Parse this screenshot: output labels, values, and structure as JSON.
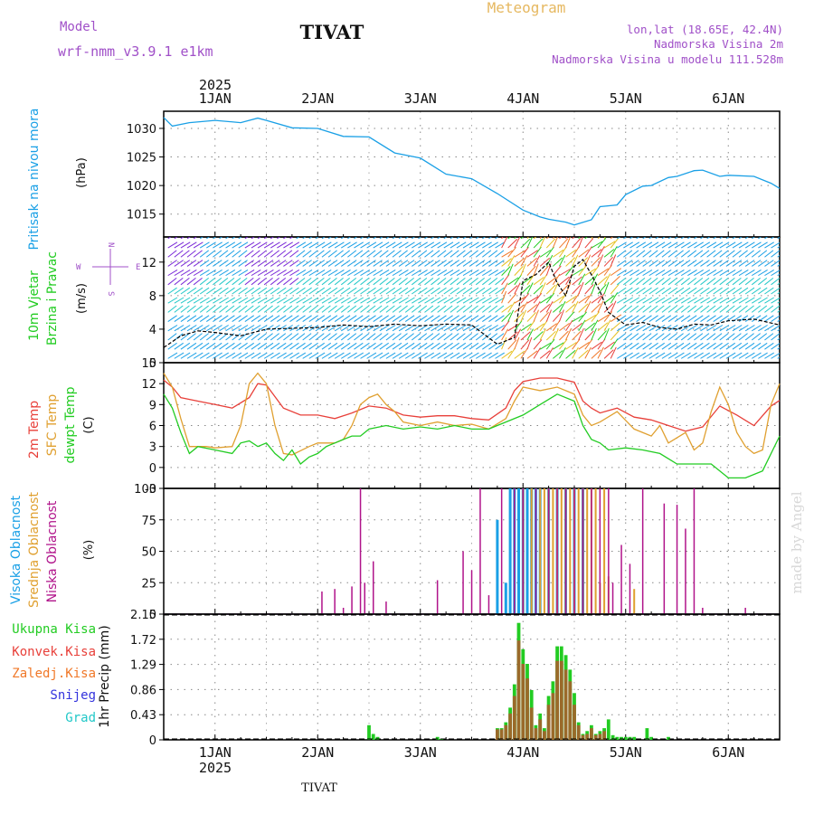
{
  "header": {
    "model_label": "Model",
    "model_name": "wrf-nmm_v3.9.1 e1km",
    "title": "TIVAT",
    "subtitle": "Meteogram",
    "location": "lon,lat (18.65E, 42.4N)",
    "elevation": "Nadmorska Visina 2m",
    "model_elevation": "Nadmorska Visina u modelu 111.528m",
    "footer": "TIVAT",
    "credit": "made by Angel"
  },
  "colors": {
    "pressure": "#1aa0e6",
    "temp_2m": "#e8403a",
    "temp_sfc": "#e0a030",
    "dewpoint": "#22cc22",
    "cloud_high": "#1aa0e6",
    "cloud_mid": "#e0a030",
    "cloud_low": "#b0138a",
    "precip_total": "#22cc22",
    "precip_conv": "#e8403a",
    "precip_frozen": "#f07828",
    "snow": "#3333dd",
    "graupel": "#22c8c8",
    "header_text": "#a050c8",
    "wind_speed": "#000000"
  },
  "time_axis": {
    "year": "2025",
    "day_labels": [
      "1JAN",
      "2JAN",
      "3JAN",
      "4JAN",
      "5JAN",
      "6JAN"
    ],
    "start_hour": -12,
    "end_hour": 132
  },
  "chart_data": [
    {
      "type": "line",
      "panel": "pressure",
      "ylabel_1": "Pritisak na nivou mora",
      "ylabel_2": "(hPa)",
      "ylim": [
        1011,
        1033
      ],
      "yticks": [
        1015,
        1020,
        1025,
        1030
      ],
      "series": [
        {
          "x": [
            -12,
            -10,
            -6,
            0,
            6,
            10,
            12,
            18,
            24,
            30,
            36,
            42,
            48,
            54,
            60,
            66,
            72,
            76,
            78,
            82,
            84,
            88,
            90,
            94,
            96,
            100,
            102,
            106,
            108,
            112,
            114,
            118,
            120,
            126,
            130,
            132
          ],
          "y": [
            1031.9,
            1030.4,
            1031.0,
            1031.4,
            1031.0,
            1031.8,
            1031.4,
            1030.1,
            1030.0,
            1028.6,
            1028.5,
            1025.7,
            1024.8,
            1022.0,
            1021.2,
            1018.6,
            1015.7,
            1014.5,
            1014.1,
            1013.6,
            1013.1,
            1014.0,
            1016.3,
            1016.6,
            1018.4,
            1019.9,
            1020.0,
            1021.4,
            1021.6,
            1022.6,
            1022.7,
            1021.6,
            1021.8,
            1021.6,
            1020.4,
            1019.5
          ]
        }
      ]
    },
    {
      "type": "line",
      "panel": "wind",
      "ylabel_1": "10m Vjetar",
      "ylabel_2": "Brzina i Pravac",
      "ylabel_3": "(m/s)",
      "compass_left": "W",
      "compass_right": "E",
      "compass_top": "N",
      "compass_bottom": "S",
      "ylim": [
        0,
        15
      ],
      "yticks": [
        0,
        4,
        8,
        12
      ],
      "series": [
        {
          "x": [
            -12,
            -8,
            -4,
            0,
            6,
            12,
            18,
            24,
            30,
            36,
            42,
            48,
            54,
            60,
            66,
            70,
            72,
            75,
            78,
            80,
            82,
            84,
            86,
            88,
            90,
            92,
            96,
            100,
            104,
            108,
            112,
            116,
            120,
            126,
            132
          ],
          "y": [
            1.8,
            3.2,
            3.8,
            3.6,
            3.2,
            4.0,
            4.1,
            4.2,
            4.5,
            4.3,
            4.6,
            4.4,
            4.6,
            4.5,
            2.2,
            3.0,
            9.8,
            10.5,
            12.0,
            9.5,
            8.0,
            11.5,
            12.3,
            10.5,
            8.5,
            6.0,
            4.5,
            4.8,
            4.2,
            4.0,
            4.6,
            4.5,
            5.0,
            5.2,
            4.5
          ]
        }
      ]
    },
    {
      "type": "line",
      "panel": "temperature",
      "ylabel_1": "2m Temp",
      "ylabel_2": "SFC Temp",
      "ylabel_3": "dewpt Temp",
      "ylabel_4": "(C)",
      "ylim": [
        -3,
        15
      ],
      "yticks": [
        -3,
        0,
        3,
        6,
        9,
        12,
        15
      ],
      "series": [
        {
          "name": "2m Temp",
          "x": [
            -12,
            -10,
            -8,
            -4,
            0,
            4,
            8,
            10,
            12,
            16,
            20,
            24,
            28,
            32,
            36,
            40,
            44,
            48,
            52,
            56,
            60,
            64,
            68,
            70,
            72,
            76,
            80,
            84,
            86,
            88,
            90,
            94,
            98,
            102,
            106,
            110,
            114,
            118,
            122,
            126,
            130,
            132
          ],
          "y": [
            12.5,
            11.5,
            10.0,
            9.5,
            9.0,
            8.5,
            10.0,
            12.0,
            11.8,
            8.5,
            7.5,
            7.5,
            7.0,
            7.8,
            8.8,
            8.5,
            7.5,
            7.2,
            7.4,
            7.4,
            7.0,
            6.8,
            8.5,
            11.0,
            12.3,
            12.8,
            12.8,
            12.2,
            9.5,
            8.5,
            7.8,
            8.5,
            7.2,
            6.8,
            6.0,
            5.2,
            5.8,
            8.8,
            7.5,
            6.0,
            8.8,
            9.6
          ]
        },
        {
          "name": "SFC Temp",
          "x": [
            -12,
            -10,
            -8,
            -6,
            -4,
            -2,
            0,
            4,
            6,
            8,
            10,
            12,
            14,
            16,
            18,
            22,
            24,
            28,
            30,
            32,
            34,
            36,
            38,
            40,
            42,
            44,
            48,
            52,
            56,
            60,
            64,
            68,
            70,
            72,
            76,
            80,
            84,
            86,
            88,
            90,
            94,
            98,
            102,
            104,
            106,
            110,
            112,
            114,
            116,
            118,
            120,
            122,
            124,
            126,
            128,
            130,
            132
          ],
          "y": [
            13.5,
            11.5,
            7.0,
            3.0,
            3.0,
            3.0,
            2.8,
            3.0,
            6.0,
            12.0,
            13.5,
            12.0,
            6.0,
            2.0,
            1.8,
            3.0,
            3.5,
            3.5,
            4.0,
            6.0,
            9.0,
            10.0,
            10.5,
            9.0,
            8.0,
            6.5,
            6.0,
            6.5,
            6.0,
            6.2,
            5.5,
            7.0,
            9.5,
            11.5,
            11.0,
            11.5,
            10.5,
            7.5,
            6.0,
            6.5,
            8.0,
            5.5,
            4.5,
            6.0,
            3.5,
            5.0,
            2.5,
            3.5,
            8.0,
            11.5,
            9.0,
            5.0,
            3.0,
            2.0,
            2.5,
            9.0,
            12.0
          ]
        },
        {
          "name": "dewpt Temp",
          "x": [
            -12,
            -10,
            -8,
            -6,
            -4,
            0,
            4,
            6,
            8,
            10,
            12,
            14,
            16,
            18,
            20,
            22,
            24,
            26,
            28,
            30,
            32,
            34,
            36,
            40,
            44,
            48,
            52,
            56,
            60,
            64,
            68,
            72,
            76,
            80,
            84,
            86,
            88,
            90,
            92,
            96,
            100,
            104,
            108,
            112,
            116,
            120,
            124,
            128,
            132
          ],
          "y": [
            10.5,
            8.5,
            5.0,
            2.0,
            3.0,
            2.5,
            2.0,
            3.5,
            3.8,
            3.0,
            3.5,
            2.0,
            1.0,
            2.5,
            0.5,
            1.5,
            2.0,
            3.0,
            3.5,
            4.0,
            4.5,
            4.5,
            5.5,
            6.0,
            5.5,
            5.8,
            5.5,
            6.0,
            5.5,
            5.5,
            6.5,
            7.5,
            9.0,
            10.5,
            9.5,
            6.0,
            4.0,
            3.5,
            2.5,
            2.8,
            2.5,
            2.0,
            0.5,
            0.5,
            0.5,
            -1.5,
            -1.5,
            -0.5,
            4.5
          ]
        }
      ]
    },
    {
      "type": "bar",
      "panel": "cloud",
      "ylabel_1": "Visoka Oblacnost",
      "ylabel_2": "Srednja Oblacnost",
      "ylabel_3": "Niska Oblacnost",
      "ylabel_4": "(%)",
      "ylim": [
        0,
        100
      ],
      "yticks": [
        0,
        25,
        50,
        75,
        100
      ],
      "series": [
        {
          "name": "Visoka Oblacnost",
          "x": [
            66,
            68,
            69,
            70,
            71,
            72,
            73,
            74,
            75,
            76,
            78,
            80,
            82,
            84,
            86
          ],
          "values": [
            75,
            25,
            100,
            100,
            100,
            100,
            100,
            100,
            100,
            100,
            100,
            100,
            100,
            100,
            100
          ]
        },
        {
          "name": "Srednja Oblacnost",
          "x": [
            72,
            74,
            76,
            77,
            78,
            79,
            80,
            81,
            82,
            83,
            84,
            85,
            86,
            87,
            88,
            89,
            90,
            91,
            92,
            98
          ],
          "values": [
            100,
            100,
            100,
            100,
            100,
            100,
            100,
            100,
            100,
            100,
            100,
            100,
            100,
            100,
            100,
            100,
            25,
            100,
            30,
            20
          ]
        },
        {
          "name": "Niska Oblacnost",
          "x": [
            25,
            28,
            30,
            32,
            34,
            35,
            37,
            40,
            52,
            58,
            60,
            62,
            64,
            67,
            70,
            72,
            75,
            78,
            80,
            82,
            84,
            86,
            88,
            90,
            92,
            93,
            95,
            97,
            100,
            105,
            108,
            110,
            112,
            114,
            124
          ],
          "values": [
            18,
            20,
            5,
            22,
            100,
            25,
            42,
            10,
            27,
            50,
            35,
            100,
            15,
            100,
            100,
            100,
            100,
            100,
            100,
            100,
            100,
            100,
            100,
            100,
            100,
            25,
            55,
            40,
            100,
            88,
            87,
            68,
            100,
            5,
            5
          ]
        }
      ]
    },
    {
      "type": "bar",
      "panel": "precip",
      "ylabel_1": "1hr Precip (mm)",
      "legend_1": "Ukupna Kisa",
      "legend_2": "Konvek.Kisa",
      "legend_3": "Zaledj.Kisa",
      "legend_4": "Snijeg",
      "legend_5": "Grad",
      "ylim": [
        0,
        2.15
      ],
      "yticks": [
        0,
        0.43,
        0.86,
        1.29,
        1.72,
        2.15
      ],
      "ytick_labels": [
        "0",
        "0.43",
        "0.86",
        "1.29",
        "1.72",
        "2.15"
      ],
      "series": [
        {
          "name": "Ukupna Kisa",
          "x": [
            36,
            37,
            38,
            52,
            53,
            66,
            67,
            68,
            69,
            70,
            71,
            72,
            73,
            74,
            75,
            76,
            77,
            78,
            79,
            80,
            81,
            82,
            83,
            84,
            85,
            86,
            87,
            88,
            89,
            90,
            91,
            92,
            93,
            94,
            95,
            96,
            97,
            98,
            101,
            102,
            106
          ],
          "values": [
            0.25,
            0.1,
            0.05,
            0.05,
            0.02,
            0.2,
            0.2,
            0.3,
            0.55,
            0.95,
            2.0,
            1.55,
            1.3,
            0.85,
            0.25,
            0.45,
            0.2,
            0.75,
            1.0,
            1.6,
            1.6,
            1.45,
            1.2,
            0.8,
            0.3,
            0.1,
            0.15,
            0.25,
            0.1,
            0.15,
            0.2,
            0.35,
            0.08,
            0.05,
            0.05,
            0.05,
            0.05,
            0.05,
            0.2,
            0.05,
            0.05
          ]
        },
        {
          "name": "Konvek.Kisa",
          "x": [
            66,
            67,
            68,
            69,
            70,
            71,
            72,
            73,
            74,
            75,
            76,
            77,
            78,
            79,
            80,
            81,
            82,
            83,
            84,
            85,
            86,
            87,
            88,
            89,
            90,
            91
          ],
          "values": [
            0.18,
            0.18,
            0.25,
            0.45,
            0.75,
            1.7,
            1.3,
            1.05,
            0.55,
            0.2,
            0.35,
            0.15,
            0.6,
            0.8,
            1.35,
            1.35,
            1.2,
            1.0,
            0.6,
            0.25,
            0.08,
            0.1,
            0.2,
            0.08,
            0.1,
            0.15
          ]
        }
      ]
    }
  ]
}
